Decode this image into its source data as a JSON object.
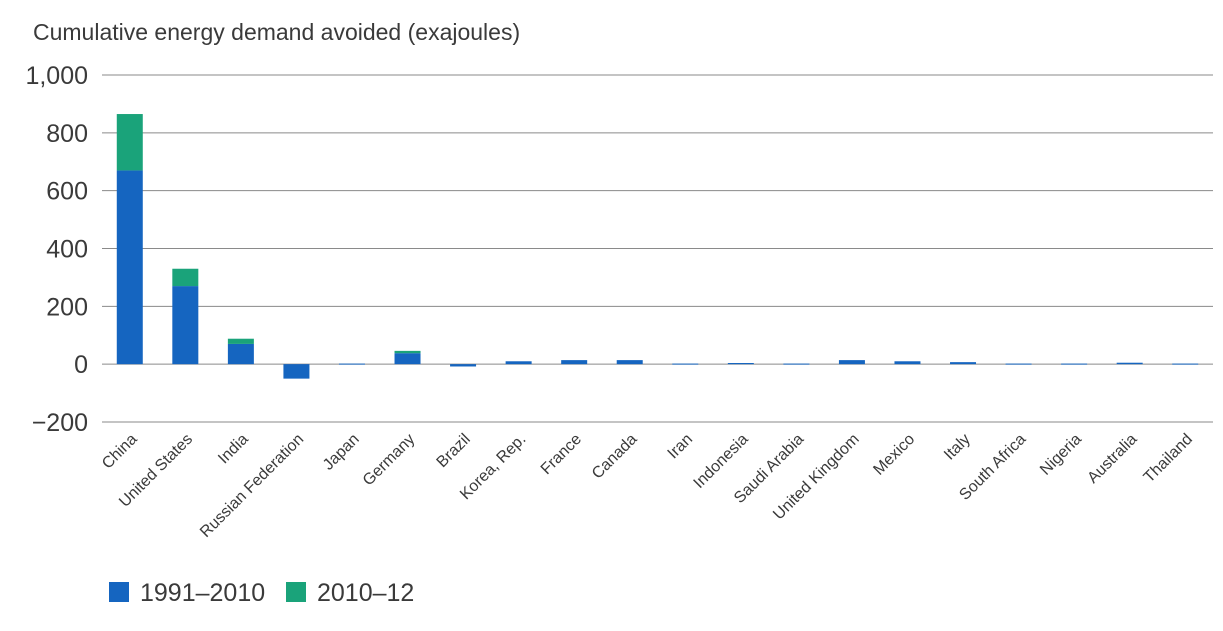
{
  "chart_data": {
    "type": "bar",
    "stacked": true,
    "title": "Cumulative energy demand avoided (exajoules)",
    "xlabel": "",
    "ylabel": "",
    "ylim": [
      -200,
      1000
    ],
    "yticks": [
      -200,
      0,
      200,
      400,
      600,
      800,
      1000
    ],
    "ytick_labels": [
      "−200",
      "0",
      "200",
      "400",
      "600",
      "800",
      "1,000"
    ],
    "grid": true,
    "legend_position": "bottom-left",
    "categories": [
      "China",
      "United States",
      "India",
      "Russian Federation",
      "Japan",
      "Germany",
      "Brazil",
      "Korea, Rep.",
      "France",
      "Canada",
      "Iran",
      "Indonesia",
      "Saudi Arabia",
      "United Kingdom",
      "Mexico",
      "Italy",
      "South Africa",
      "Nigeria",
      "Australia",
      "Thailand"
    ],
    "series": [
      {
        "name": "1991–2010",
        "color": "#1565c0",
        "values": [
          670,
          270,
          70,
          -50,
          2,
          38,
          -8,
          10,
          14,
          14,
          2,
          4,
          2,
          14,
          10,
          7,
          2,
          2,
          5,
          2
        ]
      },
      {
        "name": "2010–12",
        "color": "#1aa37a",
        "values": [
          195,
          60,
          18,
          0,
          0,
          8,
          0,
          0,
          0,
          0,
          0,
          0,
          0,
          0,
          0,
          0,
          0,
          0,
          0,
          0
        ]
      }
    ]
  }
}
